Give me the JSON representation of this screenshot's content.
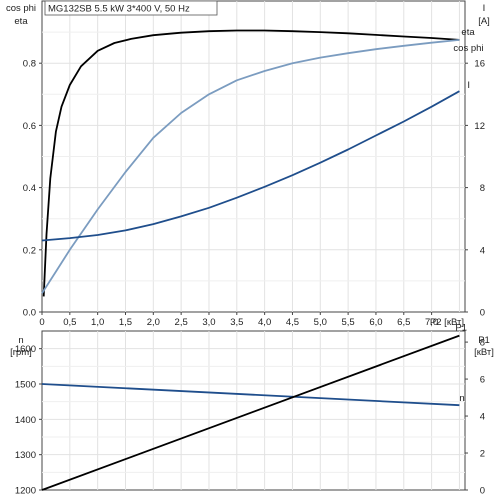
{
  "title": "MG132SB   5.5 kW   3*400 V, 50 Hz",
  "chart_data": [
    {
      "type": "line",
      "xlabel": "P2 [кВт]",
      "x_ticks": [
        "0",
        "0,5",
        "1,0",
        "1,5",
        "2,0",
        "2,5",
        "3,0",
        "3,5",
        "4,0",
        "4,5",
        "5,0",
        "5,5",
        "6,0",
        "6,5",
        "7,0"
      ],
      "xlim": [
        0,
        7.6
      ],
      "left_axis": {
        "label_lines": [
          "cos phi",
          "eta"
        ],
        "ylim": [
          0,
          1.0
        ],
        "ticks": [
          "0.0",
          "0.2",
          "0.4",
          "0.6",
          "0.8"
        ]
      },
      "right_axis": {
        "label_lines": [
          "I",
          "[A]"
        ],
        "ylim": [
          0,
          20
        ],
        "ticks": [
          "0",
          "4",
          "8",
          "12",
          "16"
        ]
      },
      "grid": true,
      "series": [
        {
          "name": "eta",
          "axis": "left",
          "color": "#000000",
          "x": [
            0.03,
            0.08,
            0.15,
            0.25,
            0.35,
            0.5,
            0.7,
            1.0,
            1.3,
            1.6,
            2.0,
            2.5,
            3.0,
            3.5,
            4.0,
            4.5,
            5.0,
            5.5,
            6.0,
            6.5,
            7.0,
            7.5
          ],
          "y": [
            0.05,
            0.25,
            0.43,
            0.58,
            0.66,
            0.73,
            0.79,
            0.84,
            0.865,
            0.878,
            0.89,
            0.898,
            0.903,
            0.905,
            0.905,
            0.903,
            0.9,
            0.896,
            0.891,
            0.886,
            0.881,
            0.875
          ]
        },
        {
          "name": "cos phi",
          "axis": "left",
          "color": "#7b9cc0",
          "x": [
            0,
            0.25,
            0.5,
            1.0,
            1.5,
            2.0,
            2.5,
            3.0,
            3.5,
            4.0,
            4.5,
            5.0,
            5.5,
            6.0,
            6.5,
            7.0,
            7.5
          ],
          "y": [
            0.06,
            0.13,
            0.2,
            0.33,
            0.45,
            0.56,
            0.64,
            0.7,
            0.745,
            0.775,
            0.8,
            0.818,
            0.832,
            0.845,
            0.856,
            0.866,
            0.875
          ]
        },
        {
          "name": "I",
          "axis": "right",
          "color": "#1f4e8c",
          "x": [
            0,
            0.5,
            1.0,
            1.5,
            2.0,
            2.5,
            3.0,
            3.5,
            4.0,
            4.5,
            5.0,
            5.5,
            6.0,
            6.5,
            7.0,
            7.5
          ],
          "y": [
            4.6,
            4.75,
            4.95,
            5.25,
            5.65,
            6.15,
            6.7,
            7.35,
            8.05,
            8.8,
            9.6,
            10.45,
            11.35,
            12.25,
            13.2,
            14.2
          ]
        }
      ]
    },
    {
      "type": "line",
      "xlim": [
        0,
        7.6
      ],
      "left_axis": {
        "label_lines": [
          "n",
          "[rpm]"
        ],
        "ylim": [
          1200,
          1650
        ],
        "ticks": [
          "1200",
          "1300",
          "1400",
          "1500",
          "1600"
        ]
      },
      "right_axis": {
        "label_lines": [
          "P1",
          "[кВт]"
        ],
        "ylim": [
          0,
          8.6
        ],
        "ticks": [
          "0",
          "2",
          "4",
          "6",
          "8"
        ]
      },
      "grid": true,
      "series": [
        {
          "name": "n",
          "axis": "left",
          "color": "#1f4e8c",
          "x": [
            0,
            7.5
          ],
          "y": [
            1500,
            1440
          ]
        },
        {
          "name": "P1",
          "axis": "right",
          "color": "#000000",
          "x": [
            0,
            7.5
          ],
          "y": [
            0,
            8.35
          ]
        }
      ]
    }
  ]
}
